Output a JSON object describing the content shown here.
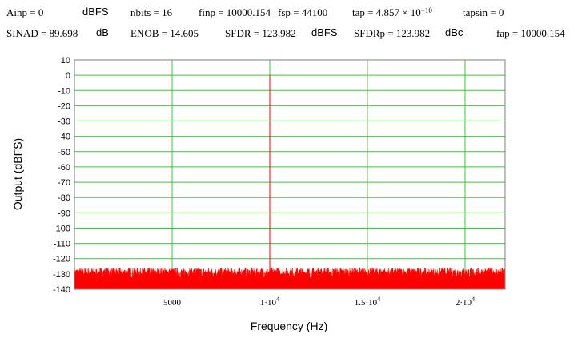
{
  "header": {
    "row1": {
      "ainp": "Ainp = 0",
      "ainp_unit": "dBFS",
      "nbits": "nbits = 16",
      "finp": "finp = 10000.154",
      "fsp": "fsp = 44100",
      "tap_base": "tap = 4.857 × 10",
      "tap_exp": "−10",
      "tapsin": "tapsin = 0"
    },
    "row2": {
      "sinad": "SINAD = 89.698",
      "sinad_unit": "dB",
      "enob": "ENOB = 14.605",
      "sfdr": "SFDR = 123.982",
      "sfdr_unit": "dBFS",
      "sfdrp": "SFDRp = 123.982",
      "sfdrp_unit": "dBc",
      "fap": "fap = 10000.154"
    }
  },
  "chart_data": {
    "type": "line",
    "xlabel": "Frequency (Hz)",
    "ylabel": "Output (dBFS)",
    "xlim": [
      0,
      22050
    ],
    "ylim": [
      -140,
      10
    ],
    "y_ticks": [
      10,
      0,
      -10,
      -20,
      -30,
      -40,
      -50,
      -60,
      -70,
      -80,
      -90,
      -100,
      -110,
      -120,
      -130,
      -140
    ],
    "x_ticks": [
      {
        "value": 5000,
        "label": "5000",
        "exp": ""
      },
      {
        "value": 10000,
        "label": "1·10",
        "exp": "4"
      },
      {
        "value": 15000,
        "label": "1.5·10",
        "exp": "4"
      },
      {
        "value": 20000,
        "label": "2·10",
        "exp": "4"
      }
    ],
    "grid": true,
    "series": [
      {
        "color": "#ff0000",
        "signal_peak": {
          "x": 10000.154,
          "y": 0
        },
        "noise_floor": {
          "min": -134,
          "max": -126
        }
      }
    ],
    "colors": {
      "grid": "#33cc33",
      "signal": "#ff0000"
    }
  }
}
